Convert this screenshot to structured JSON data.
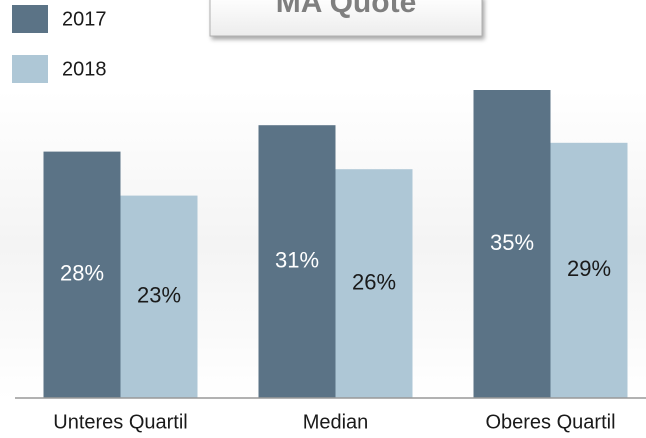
{
  "chart_data": {
    "type": "bar",
    "title": "MA Quote",
    "categories": [
      "Unteres Quartil",
      "Median",
      "Oberes Quartil"
    ],
    "series": [
      {
        "name": "2017",
        "color": "#5b7386",
        "values": [
          28,
          31,
          35
        ],
        "value_labels": [
          "28%",
          "31%",
          "35%"
        ]
      },
      {
        "name": "2018",
        "color": "#aec7d6",
        "values": [
          23,
          26,
          29
        ],
        "value_labels": [
          "23%",
          "26%",
          "29%"
        ]
      }
    ]
  }
}
